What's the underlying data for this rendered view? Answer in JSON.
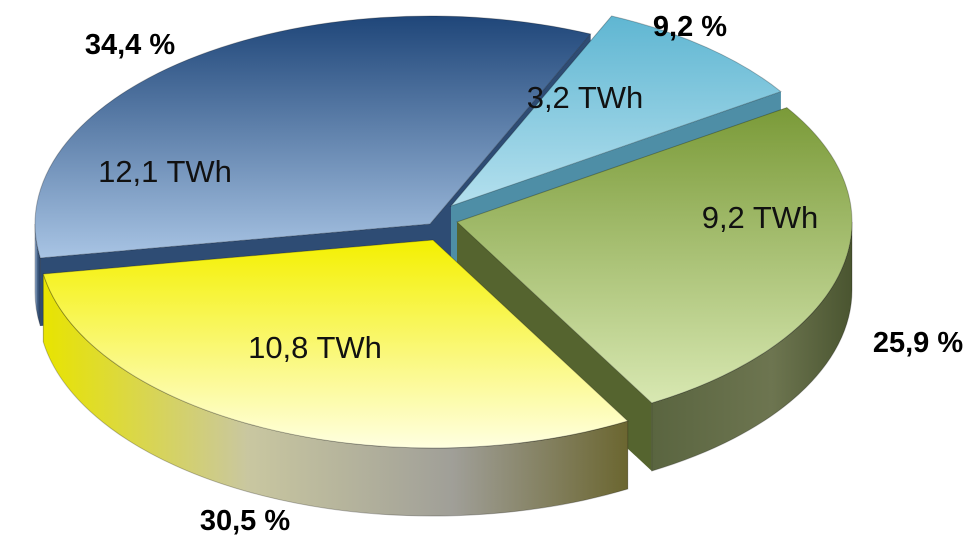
{
  "chart_data": {
    "type": "pie",
    "style": "3d-exploded",
    "slices": [
      {
        "value_label": "3,2 TWh",
        "percent_label": "9,2 %",
        "value": 3.2,
        "percent": 9.2,
        "color_top": "#5fb6d2",
        "color_light": "#b4e0ee",
        "color_side": "#4e8ea6"
      },
      {
        "value_label": "9,2 TWh",
        "percent_label": "25,9 %",
        "value": 9.2,
        "percent": 25.9,
        "color_top": "#7a9a38",
        "color_light": "#d8e8b2",
        "color_side": "#55642f"
      },
      {
        "value_label": "10,8 TWh",
        "percent_label": "30,5 %",
        "value": 10.8,
        "percent": 30.5,
        "color_top": "#f4f000",
        "color_light": "#ffffe0",
        "color_side": "#8a8650"
      },
      {
        "value_label": "12,1 TWh",
        "percent_label": "34,4 %",
        "value": 12.1,
        "percent": 34.4,
        "color_top": "#1f4679",
        "color_light": "#a8c4e4",
        "color_side": "#2e4c74"
      }
    ]
  }
}
